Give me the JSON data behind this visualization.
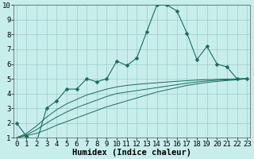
{
  "x": [
    0,
    1,
    2,
    3,
    4,
    5,
    6,
    7,
    8,
    9,
    10,
    11,
    12,
    13,
    14,
    15,
    16,
    17,
    18,
    19,
    20,
    21,
    22,
    23
  ],
  "line_main": [
    2.0,
    1.1,
    0.7,
    3.0,
    3.5,
    4.3,
    4.3,
    5.0,
    4.8,
    5.0,
    6.2,
    5.9,
    6.4,
    8.2,
    10.0,
    10.0,
    9.6,
    8.1,
    6.3,
    7.2,
    6.0,
    5.8,
    5.0,
    5.0
  ],
  "lin1": [
    1.0,
    1.15,
    1.3,
    1.55,
    1.85,
    2.1,
    2.35,
    2.6,
    2.85,
    3.1,
    3.3,
    3.5,
    3.7,
    3.9,
    4.1,
    4.25,
    4.4,
    4.55,
    4.65,
    4.75,
    4.82,
    4.88,
    4.93,
    5.0
  ],
  "lin2": [
    1.0,
    1.2,
    1.55,
    2.0,
    2.4,
    2.75,
    3.05,
    3.3,
    3.55,
    3.8,
    4.0,
    4.1,
    4.2,
    4.3,
    4.4,
    4.5,
    4.6,
    4.7,
    4.78,
    4.85,
    4.9,
    4.93,
    4.97,
    5.0
  ],
  "lin3": [
    1.0,
    1.3,
    1.8,
    2.4,
    2.9,
    3.3,
    3.6,
    3.9,
    4.1,
    4.3,
    4.45,
    4.55,
    4.62,
    4.68,
    4.73,
    4.78,
    4.83,
    4.87,
    4.91,
    4.94,
    4.96,
    4.98,
    4.99,
    5.0
  ],
  "bg_color": "#c8eeec",
  "grid_color": "#99cccc",
  "line_color": "#1a6b5e",
  "ylim": [
    1,
    10
  ],
  "xlim": [
    -0.3,
    23.3
  ],
  "xlabel": "Humidex (Indice chaleur)",
  "xlabel_fontsize": 7.5,
  "tick_fontsize": 6.5,
  "markersize": 2.5
}
